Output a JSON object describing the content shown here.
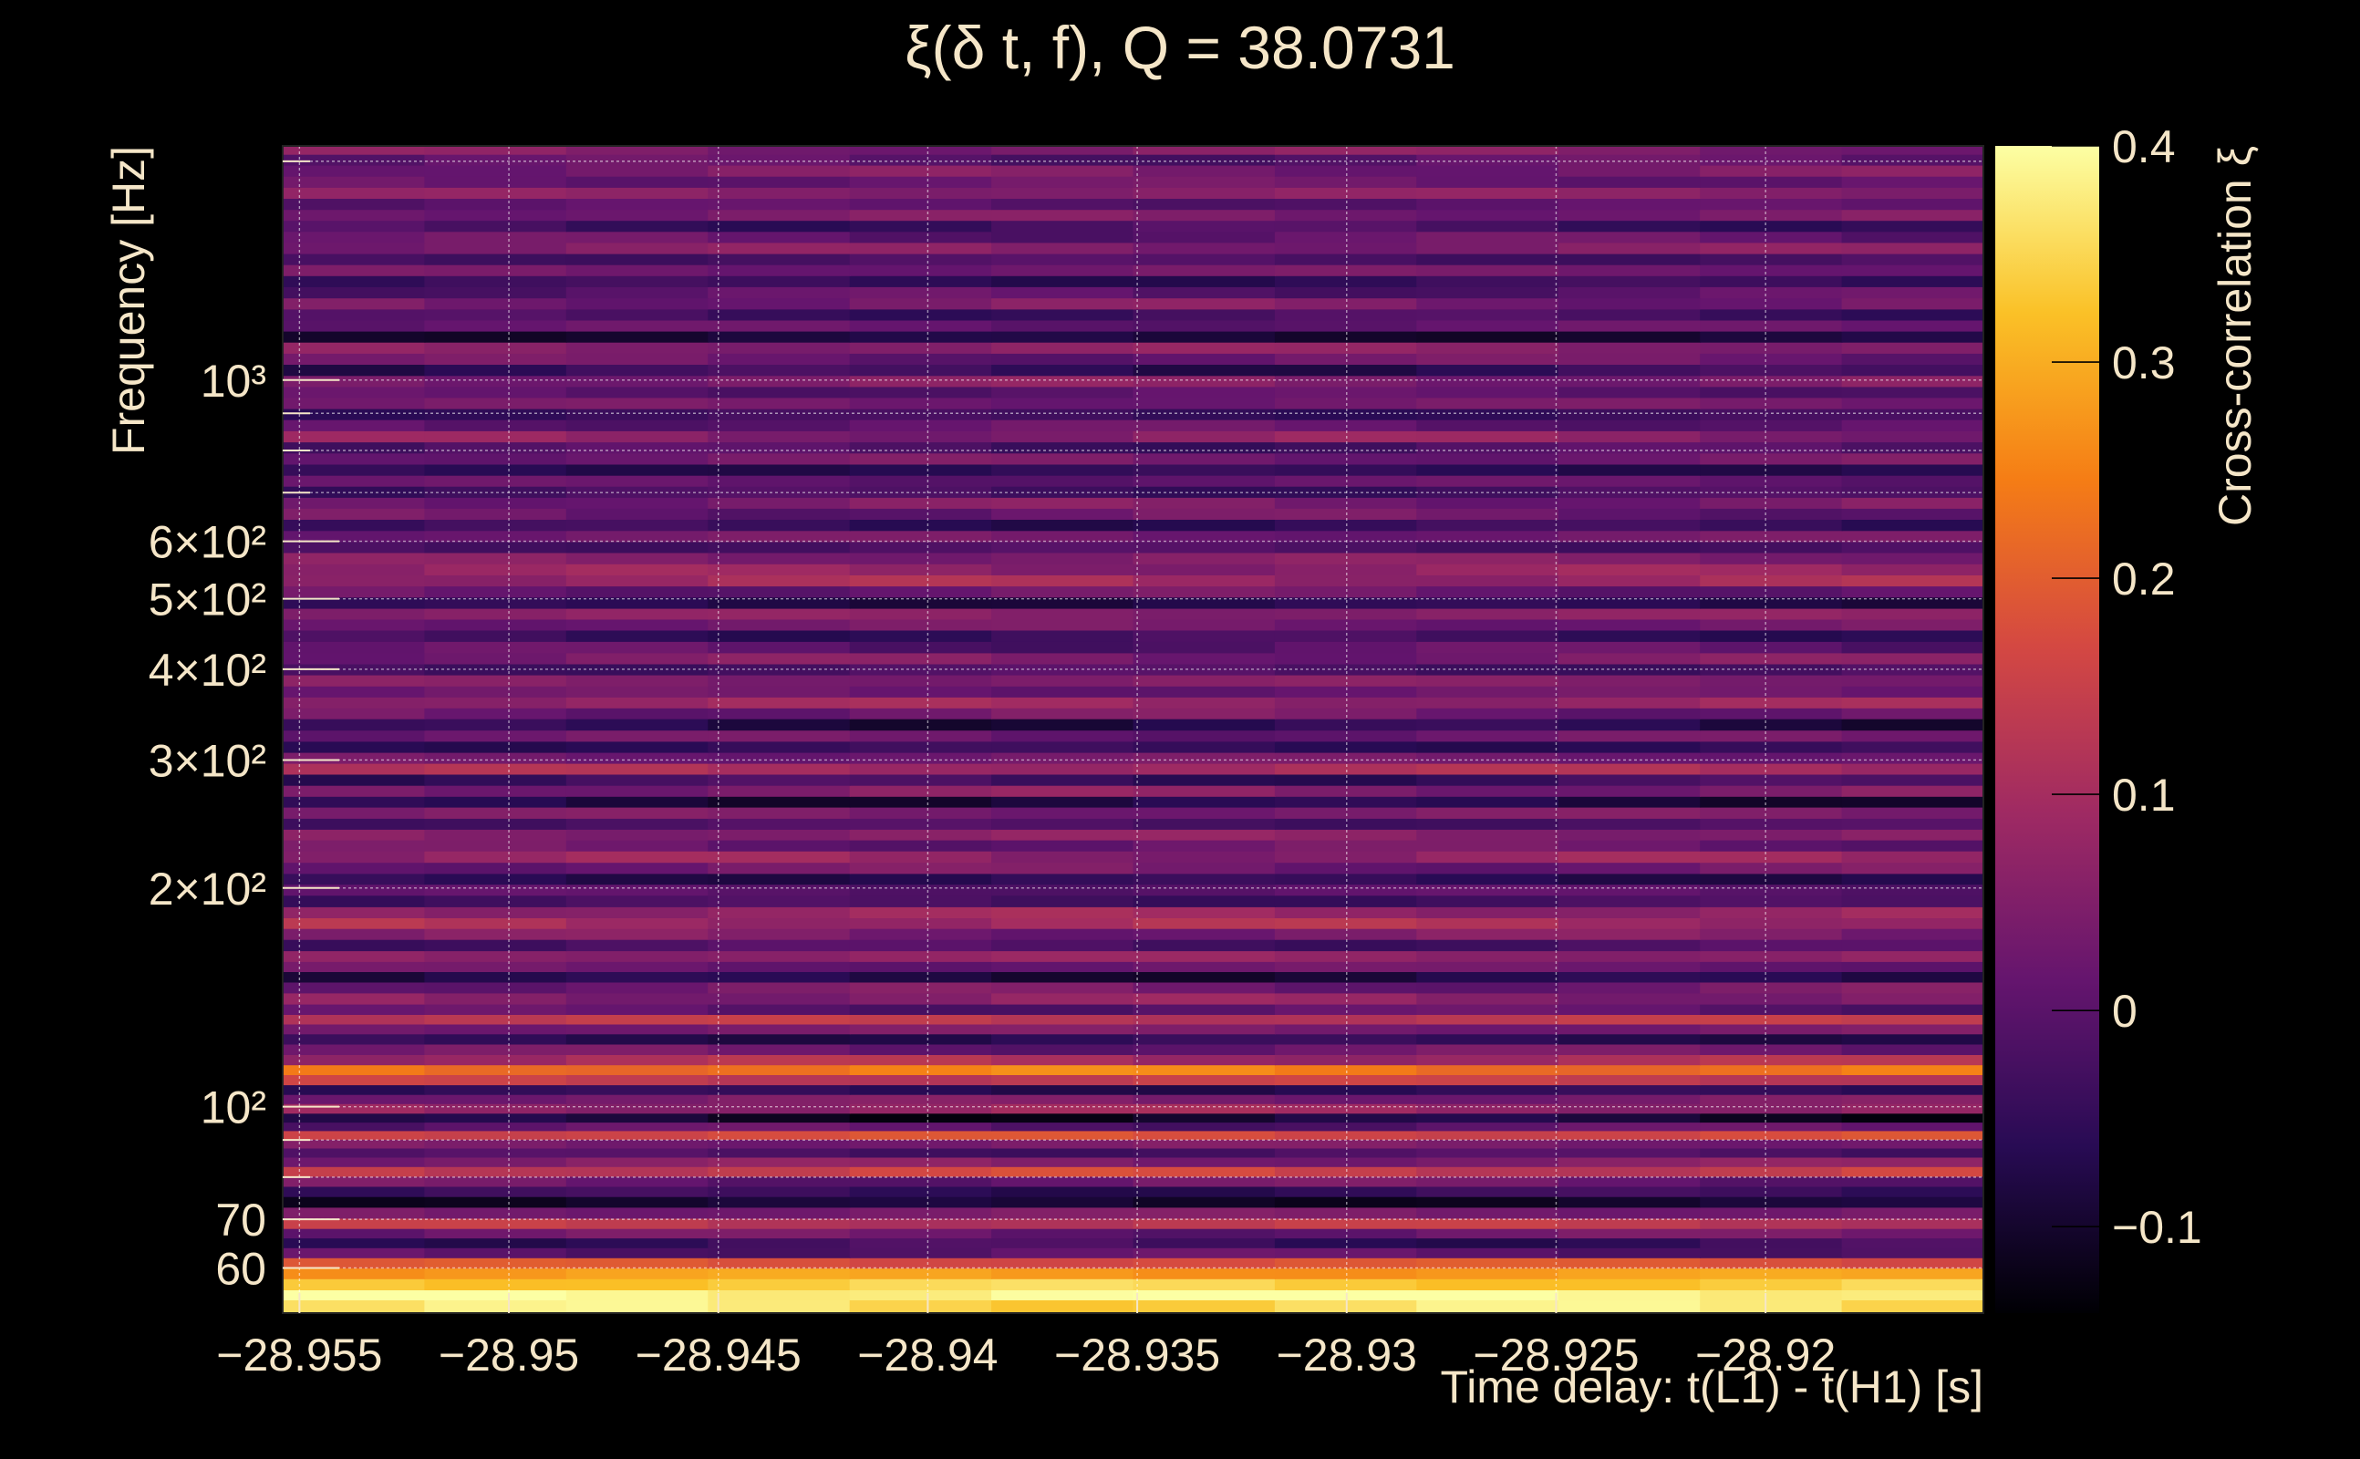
{
  "chart_data": {
    "type": "heatmap",
    "title": "ξ(δ t, f), Q = 38.0731",
    "xlabel": "Time delay: t(L1) - t(H1) [s]",
    "ylabel": "Frequency [Hz]",
    "colorbar_label": "Cross-correlation ξ",
    "x_ticks": [
      {
        "value": -28.955,
        "label": "−28.955"
      },
      {
        "value": -28.95,
        "label": "−28.95"
      },
      {
        "value": -28.945,
        "label": "−28.945"
      },
      {
        "value": -28.94,
        "label": "−28.94"
      },
      {
        "value": -28.935,
        "label": "−28.935"
      },
      {
        "value": -28.93,
        "label": "−28.93"
      },
      {
        "value": -28.925,
        "label": "−28.925"
      },
      {
        "value": -28.92,
        "label": "−28.92"
      }
    ],
    "xlim": [
      -28.9554,
      -28.9148
    ],
    "y_scale": "log",
    "ylim": [
      52,
      2100
    ],
    "y_ticks": [
      {
        "value": 60,
        "label": "60"
      },
      {
        "value": 70,
        "label": "70"
      },
      {
        "value": 100,
        "label": "10²"
      },
      {
        "value": 200,
        "label": "2×10²"
      },
      {
        "value": 300,
        "label": "3×10²"
      },
      {
        "value": 400,
        "label": "4×10²"
      },
      {
        "value": 500,
        "label": "5×10²"
      },
      {
        "value": 600,
        "label": "6×10²"
      },
      {
        "value": 1000,
        "label": "10³"
      }
    ],
    "y_minor_ticks": [
      80,
      90,
      700,
      800,
      900,
      2000
    ],
    "colorbar_ticks": [
      {
        "value": -0.1,
        "label": "−0.1"
      },
      {
        "value": 0,
        "label": "0"
      },
      {
        "value": 0.1,
        "label": "0.1"
      },
      {
        "value": 0.2,
        "label": "0.2"
      },
      {
        "value": 0.3,
        "label": "0.3"
      },
      {
        "value": 0.4,
        "label": "0.4"
      }
    ],
    "color_range": [
      -0.14,
      0.4
    ],
    "colormap": [
      "#000004",
      "#280b54",
      "#65156e",
      "#9f2a63",
      "#d44842",
      "#f57d15",
      "#fac127",
      "#fcffa4"
    ],
    "grid": true,
    "freq_bands": [
      {
        "f": 53.5,
        "xi": 0.36
      },
      {
        "f": 55,
        "xi": 0.4
      },
      {
        "f": 57,
        "xi": 0.34
      },
      {
        "f": 59,
        "xi": 0.28
      },
      {
        "f": 61,
        "xi": 0.18
      },
      {
        "f": 63,
        "xi": 0.0
      },
      {
        "f": 65,
        "xi": -0.04
      },
      {
        "f": 67,
        "xi": 0.02
      },
      {
        "f": 69,
        "xi": 0.13
      },
      {
        "f": 71.5,
        "xi": 0.04
      },
      {
        "f": 74,
        "xi": -0.1
      },
      {
        "f": 76.5,
        "xi": -0.05
      },
      {
        "f": 79,
        "xi": 0.02
      },
      {
        "f": 81.5,
        "xi": 0.15
      },
      {
        "f": 84,
        "xi": 0.05
      },
      {
        "f": 86.5,
        "xi": -0.02
      },
      {
        "f": 89,
        "xi": 0.04
      },
      {
        "f": 91.5,
        "xi": 0.17
      },
      {
        "f": 94,
        "xi": 0.0
      },
      {
        "f": 96.5,
        "xi": -0.1
      },
      {
        "f": 99.5,
        "xi": 0.08
      },
      {
        "f": 102.5,
        "xi": 0.04
      },
      {
        "f": 105.5,
        "xi": -0.06
      },
      {
        "f": 109,
        "xi": 0.14
      },
      {
        "f": 112.5,
        "xi": 0.24
      },
      {
        "f": 116,
        "xi": 0.1
      },
      {
        "f": 120,
        "xi": 0.02
      },
      {
        "f": 124,
        "xi": -0.06
      },
      {
        "f": 128,
        "xi": 0.04
      },
      {
        "f": 132,
        "xi": 0.13
      },
      {
        "f": 136,
        "xi": 0.0
      },
      {
        "f": 141,
        "xi": 0.06
      },
      {
        "f": 146,
        "xi": 0.03
      },
      {
        "f": 151,
        "xi": -0.08
      },
      {
        "f": 156,
        "xi": 0.02
      },
      {
        "f": 161,
        "xi": 0.07
      },
      {
        "f": 167,
        "xi": -0.02
      },
      {
        "f": 173,
        "xi": 0.04
      },
      {
        "f": 179,
        "xi": 0.1
      },
      {
        "f": 185,
        "xi": 0.08
      },
      {
        "f": 192,
        "xi": -0.03
      },
      {
        "f": 199,
        "xi": 0.0
      },
      {
        "f": 206,
        "xi": -0.06
      },
      {
        "f": 213,
        "xi": 0.03
      },
      {
        "f": 221,
        "xi": 0.07
      },
      {
        "f": 229,
        "xi": 0.02
      },
      {
        "f": 237,
        "xi": 0.06
      },
      {
        "f": 245,
        "xi": -0.02
      },
      {
        "f": 254,
        "xi": 0.04
      },
      {
        "f": 263,
        "xi": -0.08
      },
      {
        "f": 272,
        "xi": 0.05
      },
      {
        "f": 282,
        "xi": -0.04
      },
      {
        "f": 292,
        "xi": 0.1
      },
      {
        "f": 302,
        "xi": 0.03
      },
      {
        "f": 313,
        "xi": -0.05
      },
      {
        "f": 324,
        "xi": 0.02
      },
      {
        "f": 336,
        "xi": -0.07
      },
      {
        "f": 348,
        "xi": 0.03
      },
      {
        "f": 360,
        "xi": 0.08
      },
      {
        "f": 373,
        "xi": 0.02
      },
      {
        "f": 386,
        "xi": 0.05
      },
      {
        "f": 400,
        "xi": -0.02
      },
      {
        "f": 414,
        "xi": 0.04
      },
      {
        "f": 429,
        "xi": 0.0
      },
      {
        "f": 445,
        "xi": -0.04
      },
      {
        "f": 461,
        "xi": 0.03
      },
      {
        "f": 477,
        "xi": 0.06
      },
      {
        "f": 494,
        "xi": -0.07
      },
      {
        "f": 512,
        "xi": 0.02
      },
      {
        "f": 530,
        "xi": 0.09
      },
      {
        "f": 549,
        "xi": 0.07
      },
      {
        "f": 569,
        "xi": 0.05
      },
      {
        "f": 589,
        "xi": -0.02
      },
      {
        "f": 610,
        "xi": 0.03
      },
      {
        "f": 632,
        "xi": -0.05
      },
      {
        "f": 655,
        "xi": 0.02
      },
      {
        "f": 678,
        "xi": 0.04
      },
      {
        "f": 702,
        "xi": -0.03
      },
      {
        "f": 727,
        "xi": 0.01
      },
      {
        "f": 753,
        "xi": -0.06
      },
      {
        "f": 780,
        "xi": 0.03
      },
      {
        "f": 808,
        "xi": -0.02
      },
      {
        "f": 837,
        "xi": 0.06
      },
      {
        "f": 867,
        "xi": 0.01
      },
      {
        "f": 898,
        "xi": -0.04
      },
      {
        "f": 930,
        "xi": 0.03
      },
      {
        "f": 963,
        "xi": 0.0
      },
      {
        "f": 997,
        "xi": 0.05
      },
      {
        "f": 1033,
        "xi": -0.05
      },
      {
        "f": 1070,
        "xi": 0.02
      },
      {
        "f": 1108,
        "xi": 0.06
      },
      {
        "f": 1148,
        "xi": -0.09
      },
      {
        "f": 1189,
        "xi": 0.01
      },
      {
        "f": 1231,
        "xi": -0.03
      },
      {
        "f": 1275,
        "xi": 0.04
      },
      {
        "f": 1321,
        "xi": 0.0
      },
      {
        "f": 1368,
        "xi": -0.05
      },
      {
        "f": 1417,
        "xi": 0.03
      },
      {
        "f": 1467,
        "xi": -0.02
      },
      {
        "f": 1520,
        "xi": 0.05
      },
      {
        "f": 1574,
        "xi": 0.01
      },
      {
        "f": 1630,
        "xi": -0.03
      },
      {
        "f": 1688,
        "xi": 0.04
      },
      {
        "f": 1748,
        "xi": 0.0
      },
      {
        "f": 1810,
        "xi": 0.06
      },
      {
        "f": 1875,
        "xi": 0.02
      },
      {
        "f": 1942,
        "xi": 0.04
      },
      {
        "f": 2011,
        "xi": 0.0
      },
      {
        "f": 2080,
        "xi": 0.05
      }
    ]
  }
}
